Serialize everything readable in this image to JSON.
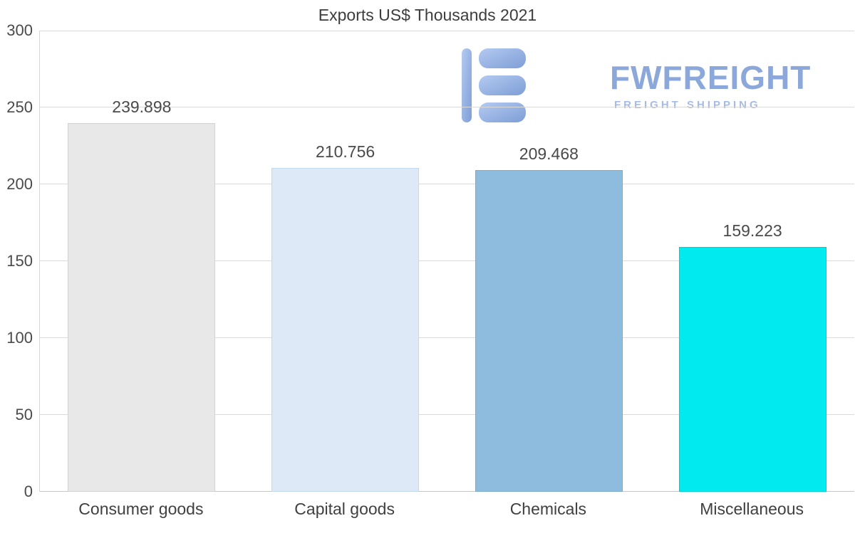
{
  "logo": {
    "name": "FWFREIGHT",
    "tagline": "FREIGHT SHIPPING",
    "brand_color": "#8ca8da",
    "tagline_color": "#a7bbe4"
  },
  "chart_data": {
    "type": "bar",
    "title": "Exports US$ Thousands 2021",
    "categories": [
      "Consumer goods",
      "Capital goods",
      "Chemicals",
      "Miscellaneous"
    ],
    "values": [
      239.898,
      210.756,
      209.468,
      159.223
    ],
    "labels": [
      "239.898",
      "210.756",
      "209.468",
      "159.223"
    ],
    "colors": [
      {
        "fill": "#e8e8e8",
        "border": "#d2d2d2"
      },
      {
        "fill": "#dde9f7",
        "border": "#c5d9ee"
      },
      {
        "fill": "#8ebcdf",
        "border": "#7cabd1"
      },
      {
        "fill": "#00eaf0",
        "border": "#00d0d6"
      }
    ],
    "xlabel": "",
    "ylabel": "",
    "ylim": [
      0,
      300
    ],
    "yticks": [
      0,
      50,
      100,
      150,
      200,
      250,
      300
    ],
    "grid": true,
    "legend": "none"
  }
}
